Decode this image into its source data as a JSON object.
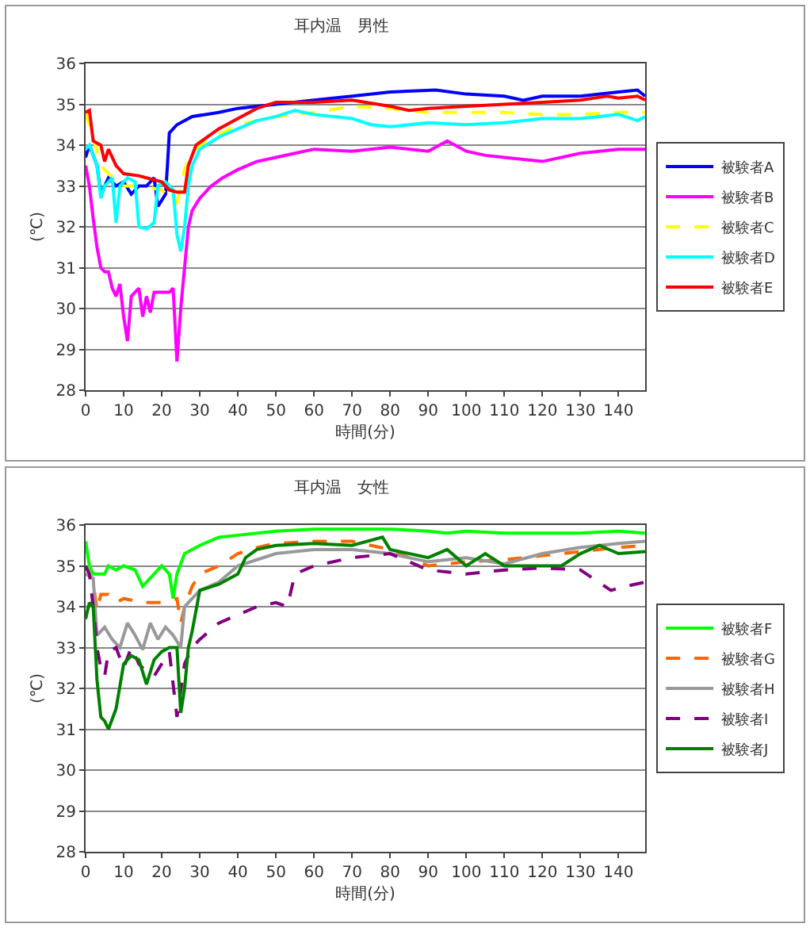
{
  "chart_data": [
    {
      "type": "line",
      "title": "耳内温　男性",
      "xlabel": "時間(分)",
      "ylabel": "(℃)",
      "xlim": [
        0,
        147
      ],
      "xticks": [
        0,
        10,
        20,
        30,
        40,
        50,
        60,
        70,
        80,
        90,
        100,
        110,
        120,
        130,
        140
      ],
      "ylim": [
        28,
        36
      ],
      "yticks": [
        28,
        29,
        30,
        31,
        32,
        33,
        34,
        35,
        36
      ],
      "grid": "y",
      "legend": "right",
      "marker": "none",
      "series": [
        {
          "name": "被験者A",
          "color": "#0000ff",
          "line_style": "solid",
          "x": [
            0,
            1,
            3,
            4,
            6,
            8,
            10,
            12,
            14,
            16,
            18,
            19,
            21,
            21.5,
            22,
            24,
            28,
            35,
            40,
            50,
            60,
            70,
            80,
            92,
            100,
            110,
            115,
            120,
            130,
            140,
            145,
            147
          ],
          "values": [
            33.7,
            34.0,
            33.5,
            32.8,
            33.2,
            33.0,
            33.1,
            32.8,
            33.0,
            33.0,
            33.2,
            32.5,
            32.8,
            33.5,
            34.3,
            34.5,
            34.7,
            34.8,
            34.9,
            35.0,
            35.1,
            35.2,
            35.3,
            35.35,
            35.25,
            35.2,
            35.1,
            35.2,
            35.2,
            35.3,
            35.35,
            35.2
          ]
        },
        {
          "name": "被験者B",
          "color": "#ff00ff",
          "line_style": "solid",
          "x": [
            0,
            1,
            2,
            3,
            4,
            5,
            6,
            7,
            8,
            9,
            10,
            11,
            12,
            14,
            15,
            16,
            17,
            18,
            20,
            22,
            23,
            24,
            25,
            26,
            27,
            28,
            30,
            33,
            36,
            40,
            45,
            50,
            55,
            60,
            70,
            80,
            90,
            95,
            100,
            105,
            110,
            120,
            130,
            140,
            147
          ],
          "values": [
            33.5,
            33.0,
            32.2,
            31.5,
            31.0,
            30.9,
            30.9,
            30.5,
            30.3,
            30.6,
            29.8,
            29.2,
            30.3,
            30.5,
            29.8,
            30.3,
            29.9,
            30.4,
            30.4,
            30.4,
            30.5,
            28.7,
            30.0,
            31.0,
            32.0,
            32.4,
            32.7,
            33.0,
            33.2,
            33.4,
            33.6,
            33.7,
            33.8,
            33.9,
            33.85,
            33.95,
            33.85,
            34.1,
            33.85,
            33.75,
            33.7,
            33.6,
            33.8,
            33.9,
            33.9
          ]
        },
        {
          "name": "被験者C",
          "color": "#ffff00",
          "line_style": "dashed",
          "x": [
            0,
            2,
            4,
            6,
            10,
            15,
            20,
            24,
            26,
            28,
            30,
            40,
            50,
            60,
            70,
            80,
            90,
            100,
            110,
            120,
            130,
            140,
            147
          ],
          "values": [
            34.8,
            34.2,
            33.5,
            33.3,
            33.0,
            33.0,
            32.9,
            32.6,
            33.4,
            33.8,
            34.0,
            34.5,
            34.7,
            34.8,
            34.95,
            34.9,
            34.8,
            34.8,
            34.8,
            34.75,
            34.75,
            34.8,
            34.8
          ]
        },
        {
          "name": "被験者D",
          "color": "#00ffff",
          "line_style": "solid",
          "x": [
            0,
            1,
            3,
            4,
            5,
            7,
            8,
            9,
            11,
            13,
            14,
            16,
            18,
            19,
            21,
            23,
            24,
            25,
            26,
            27,
            28,
            30,
            35,
            40,
            45,
            50,
            55,
            60,
            70,
            75,
            80,
            90,
            100,
            110,
            120,
            130,
            140,
            145,
            147
          ],
          "values": [
            33.9,
            34.0,
            33.5,
            32.7,
            33.0,
            33.2,
            32.1,
            33.0,
            33.2,
            33.1,
            32.0,
            31.95,
            32.1,
            33.0,
            33.1,
            32.9,
            31.8,
            31.4,
            32.0,
            33.0,
            33.5,
            33.9,
            34.2,
            34.4,
            34.6,
            34.7,
            34.85,
            34.75,
            34.65,
            34.5,
            34.45,
            34.55,
            34.5,
            34.55,
            34.65,
            34.65,
            34.75,
            34.6,
            34.7
          ]
        },
        {
          "name": "被験者E",
          "color": "#ff0000",
          "line_style": "solid",
          "x": [
            0,
            1,
            2,
            4,
            5,
            6,
            8,
            10,
            14,
            16,
            20,
            22,
            24,
            26,
            27,
            29,
            32,
            35,
            40,
            45,
            50,
            55,
            60,
            70,
            80,
            85,
            90,
            100,
            110,
            120,
            130,
            137,
            140,
            145,
            147
          ],
          "values": [
            34.8,
            34.85,
            34.1,
            34.0,
            33.6,
            33.9,
            33.5,
            33.3,
            33.25,
            33.2,
            33.1,
            32.9,
            32.85,
            32.85,
            33.5,
            34.0,
            34.2,
            34.4,
            34.65,
            34.9,
            35.05,
            35.05,
            35.05,
            35.1,
            34.95,
            34.85,
            34.9,
            34.95,
            35.0,
            35.05,
            35.1,
            35.2,
            35.15,
            35.2,
            35.1
          ]
        }
      ]
    },
    {
      "type": "line",
      "title": "耳内温　女性",
      "xlabel": "時間(分)",
      "ylabel": "(℃)",
      "xlim": [
        0,
        147
      ],
      "xticks": [
        0,
        10,
        20,
        30,
        40,
        50,
        60,
        70,
        80,
        90,
        100,
        110,
        120,
        130,
        140
      ],
      "ylim": [
        28,
        36
      ],
      "yticks": [
        28,
        29,
        30,
        31,
        32,
        33,
        34,
        35,
        36
      ],
      "grid": "y",
      "legend": "right",
      "marker": "none",
      "series": [
        {
          "name": "被験者F",
          "color": "#00ff00",
          "line_style": "solid",
          "x": [
            0,
            1,
            2,
            5,
            6,
            8,
            10,
            13,
            15,
            17,
            20,
            22,
            23,
            24,
            26,
            30,
            35,
            40,
            50,
            60,
            70,
            80,
            90,
            95,
            100,
            110,
            120,
            130,
            140,
            147
          ],
          "values": [
            35.6,
            35.0,
            34.8,
            34.8,
            35.0,
            34.9,
            35.0,
            34.9,
            34.5,
            34.7,
            35.0,
            34.8,
            34.2,
            34.8,
            35.3,
            35.5,
            35.7,
            35.75,
            35.85,
            35.9,
            35.9,
            35.9,
            35.85,
            35.8,
            35.85,
            35.8,
            35.8,
            35.8,
            35.85,
            35.8
          ]
        },
        {
          "name": "被験者G",
          "color": "#ff6600",
          "line_style": "dashed",
          "x": [
            0,
            2,
            3,
            4,
            6,
            8,
            10,
            15,
            20,
            24,
            25,
            26,
            28,
            30,
            35,
            40,
            45,
            50,
            60,
            70,
            80,
            90,
            100,
            110,
            120,
            130,
            140,
            147
          ],
          "values": [
            35.0,
            34.6,
            33.9,
            34.3,
            34.3,
            34.1,
            34.2,
            34.1,
            34.1,
            34.2,
            33.6,
            34.0,
            34.5,
            34.8,
            35.0,
            35.3,
            35.45,
            35.55,
            35.6,
            35.6,
            35.4,
            35.0,
            35.1,
            35.15,
            35.25,
            35.35,
            35.45,
            35.5
          ]
        },
        {
          "name": "被験者H",
          "color": "#999999",
          "line_style": "solid",
          "x": [
            0,
            2,
            3,
            5,
            7,
            9,
            11,
            13,
            15,
            17,
            19,
            21,
            23,
            25,
            26,
            28,
            30,
            35,
            40,
            50,
            60,
            70,
            80,
            90,
            100,
            110,
            120,
            130,
            140,
            147
          ],
          "values": [
            34.8,
            34.7,
            33.3,
            33.5,
            33.2,
            33.0,
            33.6,
            33.3,
            32.95,
            33.6,
            33.2,
            33.5,
            33.3,
            33.0,
            34.0,
            34.2,
            34.4,
            34.6,
            35.0,
            35.3,
            35.4,
            35.4,
            35.3,
            35.1,
            35.2,
            35.05,
            35.3,
            35.45,
            35.55,
            35.6
          ]
        },
        {
          "name": "被験者I",
          "color": "#800080",
          "line_style": "dashed",
          "x": [
            0,
            1,
            2,
            3,
            4,
            5,
            6,
            8,
            10,
            12,
            14,
            16,
            18,
            20,
            22,
            24,
            26,
            28,
            30,
            35,
            40,
            45,
            50,
            53,
            55,
            60,
            70,
            80,
            90,
            100,
            110,
            120,
            130,
            138,
            142,
            147
          ],
          "values": [
            35.0,
            34.8,
            34.0,
            33.0,
            32.5,
            32.3,
            32.9,
            33.0,
            32.5,
            33.0,
            32.6,
            32.4,
            32.3,
            32.6,
            32.9,
            31.3,
            32.6,
            33.0,
            33.2,
            33.6,
            33.8,
            34.0,
            34.1,
            34.0,
            34.8,
            35.0,
            35.2,
            35.3,
            34.9,
            34.8,
            34.9,
            34.95,
            34.9,
            34.4,
            34.5,
            34.6
          ]
        },
        {
          "name": "被験者J",
          "color": "#008000",
          "line_style": "solid",
          "x": [
            0,
            1,
            2,
            3,
            4,
            5,
            6,
            8,
            10,
            12,
            14,
            16,
            18,
            20,
            22,
            24,
            25,
            26,
            27,
            28,
            30,
            35,
            40,
            42,
            45,
            50,
            60,
            70,
            78,
            80,
            90,
            95,
            100,
            105,
            110,
            120,
            125,
            130,
            135,
            140,
            147
          ],
          "values": [
            33.7,
            34.1,
            34.0,
            32.2,
            31.3,
            31.2,
            31.0,
            31.5,
            32.6,
            32.8,
            32.7,
            32.1,
            32.7,
            32.9,
            33.0,
            33.0,
            31.4,
            32.0,
            33.0,
            33.4,
            34.4,
            34.55,
            34.8,
            35.2,
            35.4,
            35.5,
            35.55,
            35.5,
            35.7,
            35.4,
            35.2,
            35.4,
            35.0,
            35.3,
            35.0,
            35.0,
            35.0,
            35.3,
            35.5,
            35.3,
            35.35
          ]
        }
      ]
    }
  ]
}
